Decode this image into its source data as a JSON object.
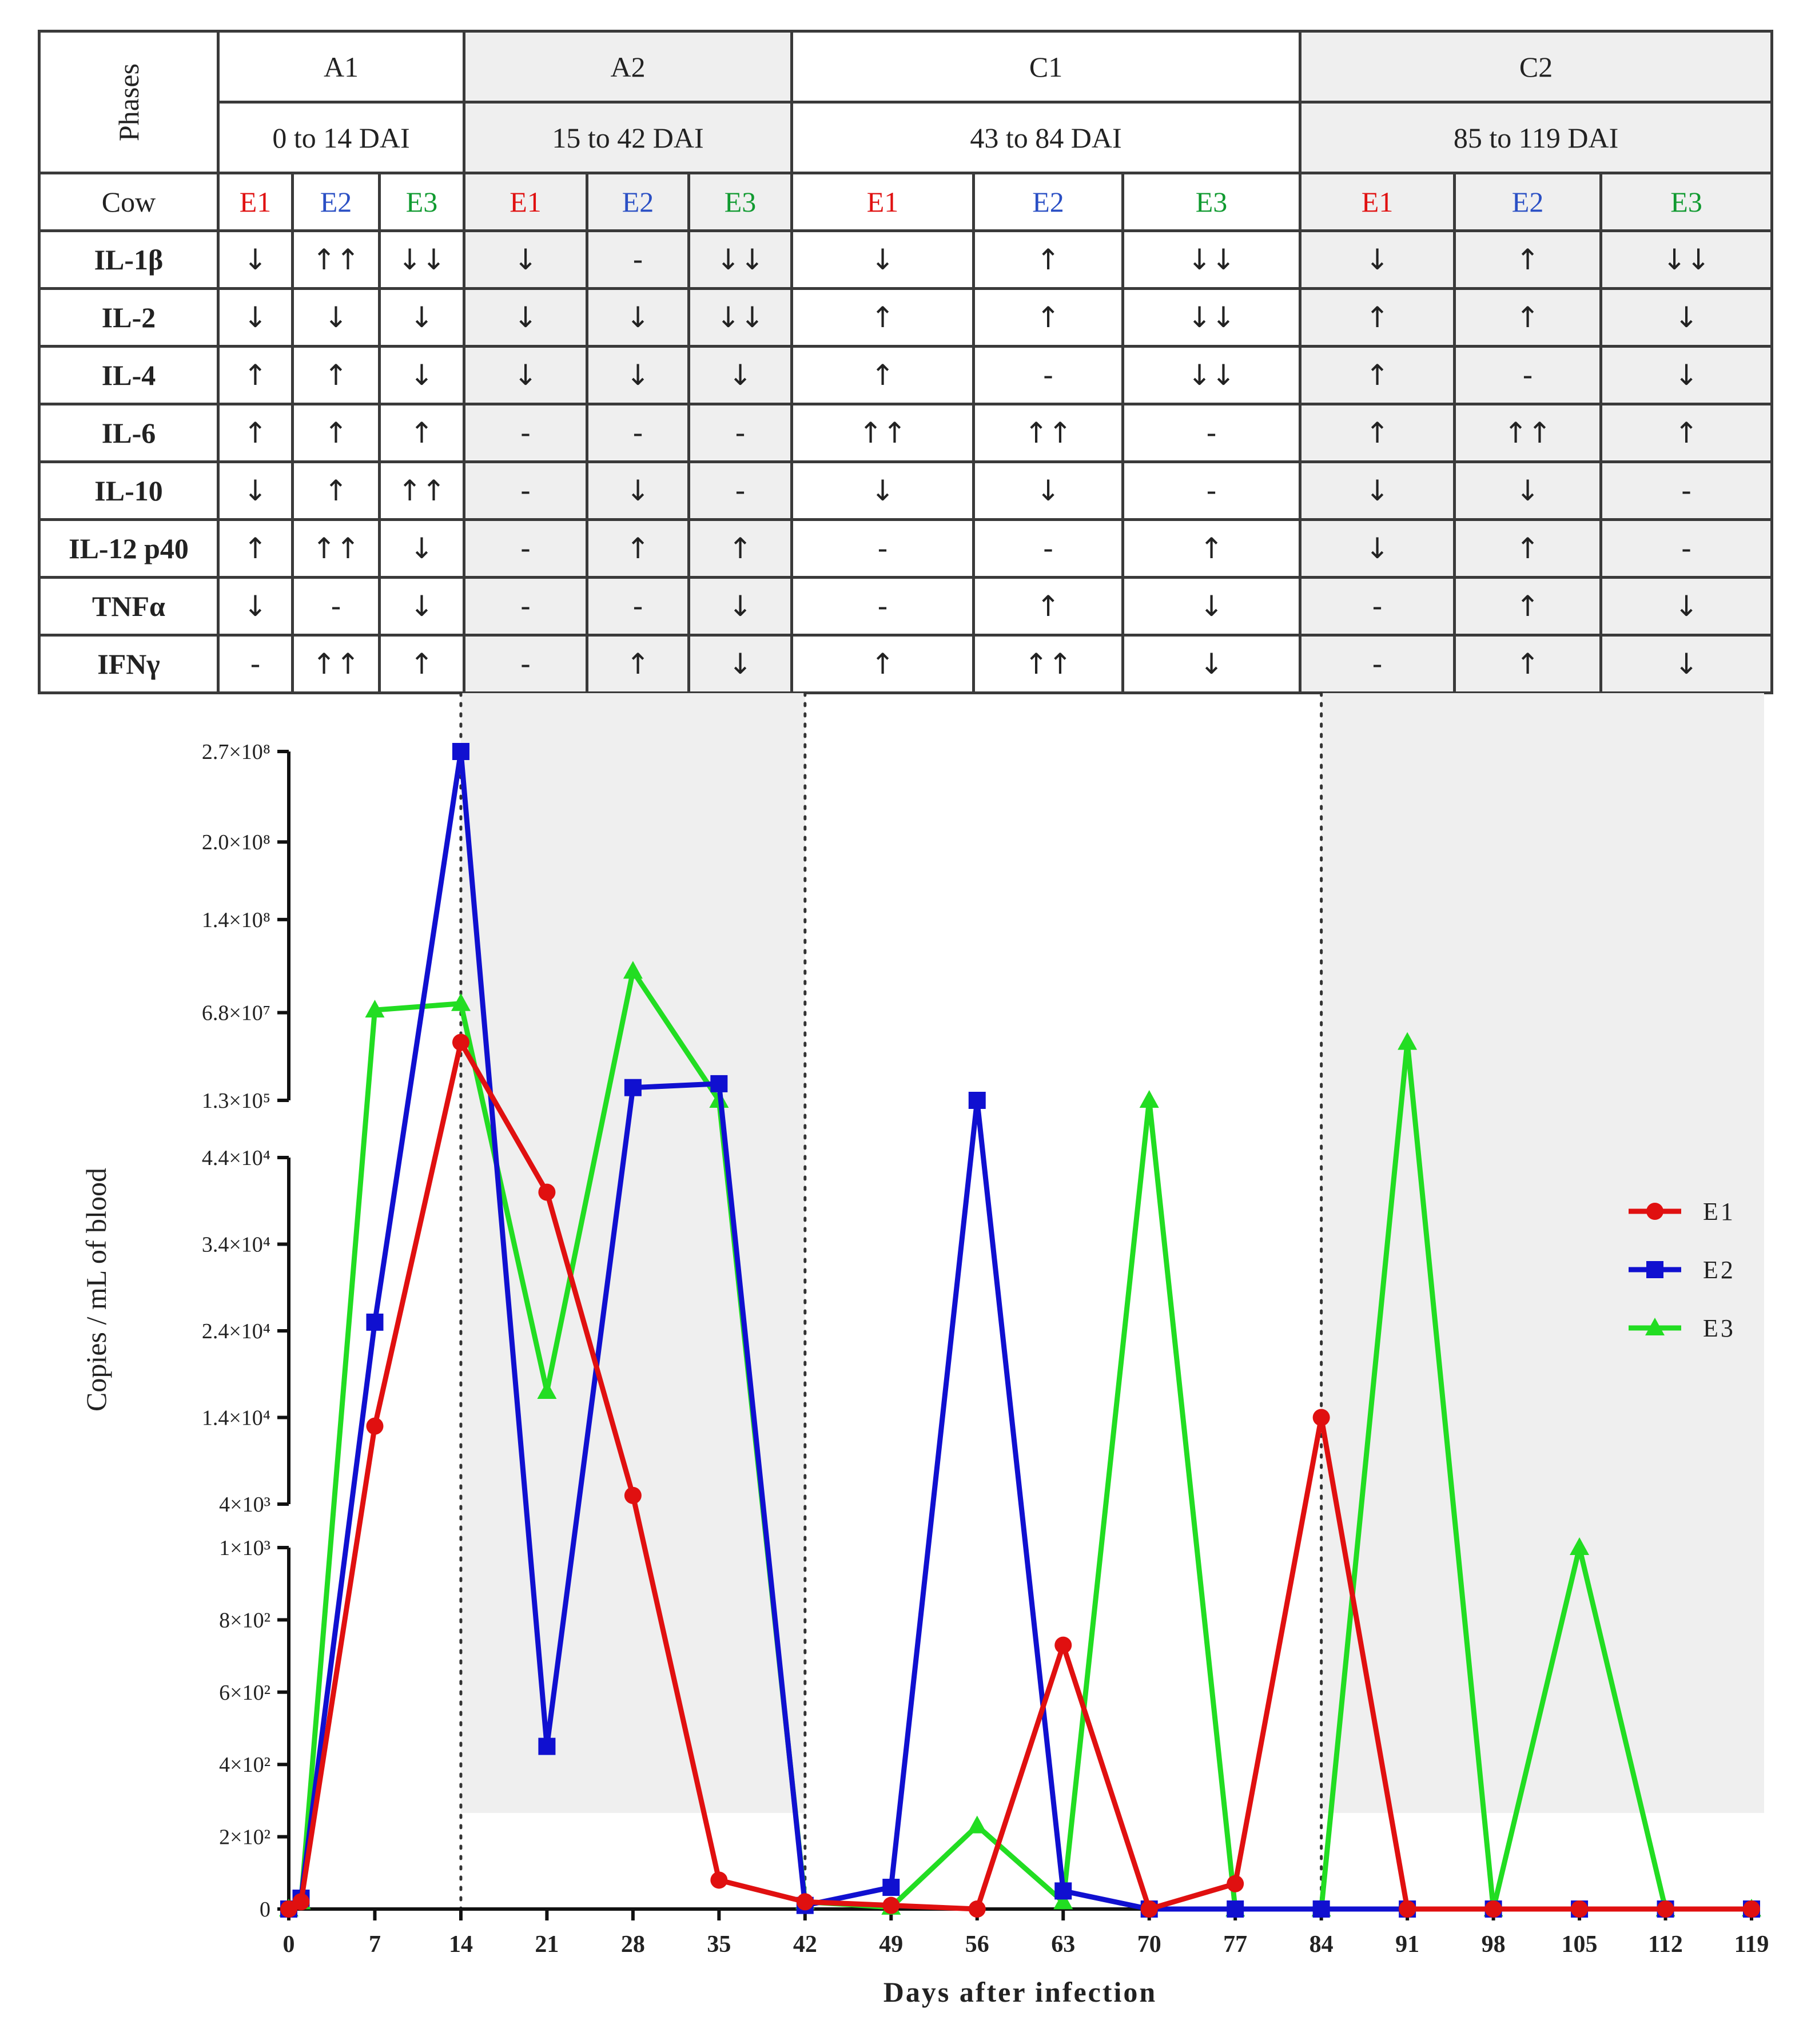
{
  "table": {
    "phases_label": "Phases",
    "phase_names": [
      "A1",
      "A2",
      "C1",
      "C2"
    ],
    "phase_ranges": [
      "0 to 14 DAI",
      "15 to 42 DAI",
      "43 to 84 DAI",
      "85 to 119 DAI"
    ],
    "cow_label": "Cow",
    "cows": [
      "E1",
      "E2",
      "E3"
    ],
    "colors": {
      "E1": "#e01010",
      "E2": "#2a4fc4",
      "E3": "#109a30",
      "shade": "#efefef"
    },
    "rows": [
      {
        "label": "IL-1β",
        "cells": [
          "↓",
          "↑↑",
          "↓↓",
          "↓",
          "-",
          "↓↓",
          "↓",
          "↑",
          "↓↓",
          "↓",
          "↑",
          "↓↓"
        ]
      },
      {
        "label": "IL-2",
        "cells": [
          "↓",
          "↓",
          "↓",
          "↓",
          "↓",
          "↓↓",
          "↑",
          "↑",
          "↓↓",
          "↑",
          "↑",
          "↓"
        ]
      },
      {
        "label": "IL-4",
        "cells": [
          "↑",
          "↑",
          "↓",
          "↓",
          "↓",
          "↓",
          "↑",
          "-",
          "↓↓",
          "↑",
          "-",
          "↓"
        ]
      },
      {
        "label": "IL-6",
        "cells": [
          "↑",
          "↑",
          "↑",
          "-",
          "-",
          "-",
          "↑↑",
          "↑↑",
          "-",
          "↑",
          "↑↑",
          "↑"
        ]
      },
      {
        "label": "IL-10",
        "cells": [
          "↓",
          "↑",
          "↑↑",
          "-",
          "↓",
          "-",
          "↓",
          "↓",
          "-",
          "↓",
          "↓",
          "-"
        ]
      },
      {
        "label": "IL-12 p40",
        "cells": [
          "↑",
          "↑↑",
          "↓",
          "-",
          "↑",
          "↑",
          "-",
          "-",
          "↑",
          "↓",
          "↑",
          "-"
        ]
      },
      {
        "label": "TNFα",
        "cells": [
          "↓",
          "-",
          "↓",
          "-",
          "-",
          "↓",
          "-",
          "↑",
          "↓",
          "-",
          "↑",
          "↓"
        ]
      },
      {
        "label": "IFNγ",
        "cells": [
          "-",
          "↑↑",
          "↑",
          "-",
          "↑",
          "↓",
          "↑",
          "↑↑",
          "↓",
          "-",
          "↑",
          "↓"
        ]
      }
    ]
  },
  "chart_data": {
    "type": "line",
    "xlabel": "Days after infection",
    "ylabel": "Copies / mL of blood",
    "x_ticks": [
      0,
      7,
      14,
      21,
      28,
      35,
      42,
      49,
      56,
      63,
      70,
      77,
      84,
      91,
      98,
      105,
      112,
      119
    ],
    "xlim": [
      0,
      119
    ],
    "y_segments": [
      {
        "range": [
          0,
          1000
        ],
        "tick_values": [
          0,
          200,
          400,
          600,
          800,
          1000
        ],
        "tick_labels": [
          "0",
          "2×10²",
          "4×10²",
          "6×10²",
          "8×10²",
          "1×10³"
        ]
      },
      {
        "range": [
          4000,
          44000
        ],
        "tick_values": [
          4000,
          14000,
          24000,
          34000,
          44000
        ],
        "tick_labels": [
          "4×10³",
          "1.4×10⁴",
          "2.4×10⁴",
          "3.4×10⁴",
          "4.4×10⁴"
        ]
      },
      {
        "range": [
          130000,
          270000000
        ],
        "tick_values": [
          130000,
          68000000,
          140000000,
          200000000,
          270000000
        ],
        "tick_labels": [
          "1.3×10⁵",
          "6.8×10⁷",
          "1.4×10⁸",
          "2.0×10⁸",
          "2.7×10⁸"
        ]
      }
    ],
    "phase_boundaries": [
      14,
      42,
      84
    ],
    "legend": {
      "position": "right",
      "entries": [
        "E1",
        "E2",
        "E3"
      ]
    },
    "series": [
      {
        "name": "E1",
        "color": "#e01010",
        "marker": "circle",
        "x": [
          0,
          1,
          7,
          14,
          21,
          28,
          35,
          42,
          49,
          56,
          63,
          70,
          77,
          84,
          91,
          98,
          105,
          112,
          119
        ],
        "y": [
          0,
          20,
          13000,
          45000000,
          40000,
          5000,
          80,
          20,
          10,
          0,
          730,
          0,
          70,
          14000,
          0,
          0,
          0,
          0,
          0
        ]
      },
      {
        "name": "E2",
        "color": "#1010d0",
        "marker": "square",
        "x": [
          0,
          1,
          7,
          14,
          21,
          28,
          35,
          42,
          49,
          56,
          63,
          70,
          77,
          84,
          91,
          98,
          105,
          112,
          119
        ],
        "y": [
          0,
          30,
          25000,
          270000000,
          450,
          10000000,
          13000000,
          10,
          60,
          130000,
          50,
          0,
          0,
          0,
          0,
          0,
          0,
          0,
          0
        ]
      },
      {
        "name": "E3",
        "color": "#22dd22",
        "marker": "triangle",
        "x": [
          0,
          1,
          7,
          14,
          21,
          28,
          35,
          42,
          49,
          56,
          63,
          70,
          77,
          84,
          91,
          98,
          105,
          112,
          119
        ],
        "y": [
          0,
          20,
          70000000,
          75000000,
          17000,
          100000000,
          130000,
          20,
          5,
          230,
          20,
          130000,
          0,
          0,
          45000000,
          0,
          1000,
          0,
          0
        ]
      }
    ]
  }
}
